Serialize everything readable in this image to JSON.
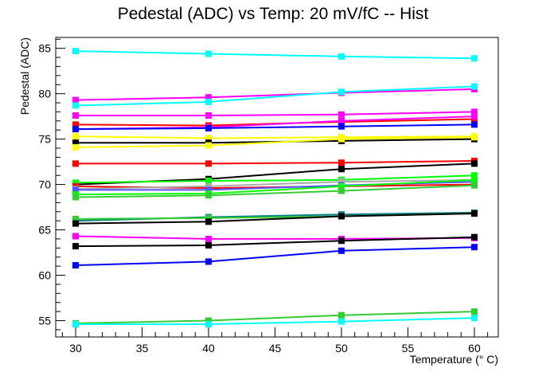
{
  "chart_data": {
    "type": "line",
    "title": "Pedestal (ADC) vs Temp: 20 mV/fC -- Hist",
    "xlabel": "Temperature (° C)",
    "ylabel": "Pedestal (ADC)",
    "xlim": [
      28.5,
      61.8
    ],
    "ylim": [
      53.2,
      86.2
    ],
    "xticks": [
      30,
      35,
      40,
      45,
      50,
      55,
      60
    ],
    "yticks": [
      55,
      60,
      65,
      70,
      75,
      80,
      85
    ],
    "grid": false,
    "legend": "none",
    "x": [
      30,
      40,
      50,
      60
    ],
    "series": [
      {
        "color": "#00ffff",
        "values": [
          84.7,
          84.4,
          84.1,
          83.9
        ]
      },
      {
        "color": "#ff00ff",
        "values": [
          79.3,
          79.6,
          80.1,
          80.5
        ]
      },
      {
        "color": "#00ffff",
        "values": [
          78.7,
          79.1,
          80.2,
          80.8
        ]
      },
      {
        "color": "#ff00ff",
        "values": [
          77.6,
          77.6,
          77.7,
          78.0
        ]
      },
      {
        "color": "#ff0000",
        "values": [
          76.6,
          76.5,
          76.9,
          77.2
        ]
      },
      {
        "color": "#ff00ff",
        "values": [
          76.1,
          76.3,
          77.0,
          77.5
        ]
      },
      {
        "color": "#0000ff",
        "values": [
          76.1,
          76.2,
          76.4,
          76.6
        ]
      },
      {
        "color": "#ffff00",
        "values": [
          75.3,
          75.1,
          75.2,
          75.3
        ]
      },
      {
        "color": "#000000",
        "values": [
          74.6,
          74.6,
          74.8,
          75.0
        ]
      },
      {
        "color": "#ffff00",
        "values": [
          74.1,
          74.3,
          75.0,
          75.2
        ]
      },
      {
        "color": "#ff0000",
        "values": [
          72.3,
          72.3,
          72.4,
          72.6
        ]
      },
      {
        "color": "#000000",
        "values": [
          70.0,
          70.6,
          71.7,
          72.3
        ]
      },
      {
        "color": "#00ff00",
        "values": [
          70.2,
          70.4,
          70.5,
          71.0
        ]
      },
      {
        "color": "#ff0000",
        "values": [
          69.8,
          69.6,
          69.8,
          70.0
        ]
      },
      {
        "color": "#aaaaaa",
        "values": [
          69.5,
          69.8,
          70.3,
          70.5
        ]
      },
      {
        "color": "#5555ff",
        "values": [
          69.4,
          69.4,
          69.9,
          70.3
        ]
      },
      {
        "color": "#00ff00",
        "values": [
          68.9,
          69.0,
          69.8,
          70.5
        ]
      },
      {
        "color": "#33cc33",
        "values": [
          68.6,
          68.8,
          69.3,
          69.9
        ]
      },
      {
        "color": "#008080",
        "values": [
          66.0,
          66.4,
          66.7,
          66.9
        ]
      },
      {
        "color": "#33cc33",
        "values": [
          66.2,
          66.3,
          66.5,
          66.8
        ]
      },
      {
        "color": "#000000",
        "values": [
          65.7,
          65.9,
          66.5,
          66.8
        ]
      },
      {
        "color": "#ff00ff",
        "values": [
          64.3,
          64.0,
          64.0,
          64.1
        ]
      },
      {
        "color": "#000000",
        "values": [
          63.2,
          63.3,
          63.8,
          64.2
        ]
      },
      {
        "color": "#0000ff",
        "values": [
          61.1,
          61.5,
          62.7,
          63.1
        ]
      },
      {
        "color": "#33cc33",
        "values": [
          54.7,
          55.0,
          55.6,
          56.0
        ]
      },
      {
        "color": "#00ffff",
        "values": [
          54.6,
          54.6,
          54.9,
          55.3
        ]
      }
    ]
  }
}
